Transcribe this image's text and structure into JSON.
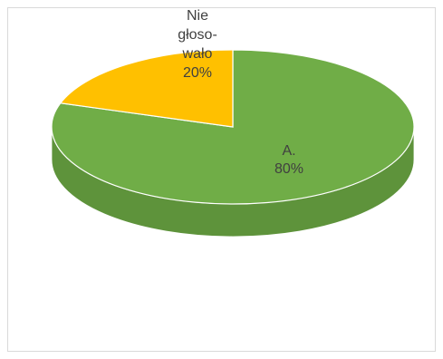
{
  "chart_data": {
    "type": "pie",
    "title": "",
    "categories": [
      "A.",
      "Nie głoso-wało"
    ],
    "values": [
      80,
      20
    ],
    "slices": [
      {
        "name": "A.",
        "value": 80,
        "label_lines": [
          "A.",
          "80%"
        ],
        "color": "#70ad47",
        "side_color": "#5e933b"
      },
      {
        "name": "Nie głoso-wało",
        "value": 20,
        "label_lines": [
          "Nie",
          "głoso-",
          "wało",
          "20%"
        ],
        "color": "#ffc000",
        "side_color": "#d9a300"
      }
    ],
    "legend": "none",
    "style": "3d"
  }
}
